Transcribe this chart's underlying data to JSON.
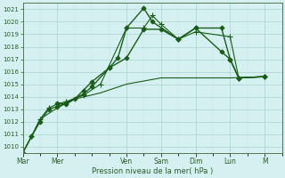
{
  "xlabel": "Pression niveau de la mer( hPa )",
  "background_color": "#d4f0f0",
  "grid_color_major": "#b0d0d0",
  "grid_color_minor": "#c8e4e4",
  "line_color": "#1a5c1a",
  "ylim": [
    1009.5,
    1021.5
  ],
  "yticks": [
    1010,
    1011,
    1012,
    1013,
    1014,
    1015,
    1016,
    1017,
    1018,
    1019,
    1020,
    1021
  ],
  "day_labels": [
    "Mar",
    "Mer",
    "Ven",
    "Sam",
    "Dim",
    "Lun",
    "M"
  ],
  "day_positions": [
    0,
    24,
    72,
    96,
    120,
    144,
    168
  ],
  "xlim": [
    0,
    180
  ],
  "series": [
    {
      "x": [
        0,
        6,
        12,
        18,
        24,
        30,
        42,
        48,
        60,
        66,
        72,
        84,
        90,
        108,
        120,
        138,
        144,
        150,
        168
      ],
      "y": [
        1009.5,
        1010.8,
        1012.0,
        1013.0,
        1013.2,
        1013.5,
        1014.2,
        1014.8,
        1016.3,
        1017.1,
        1019.5,
        1021.1,
        1020.0,
        1018.6,
        1019.5,
        1019.5,
        1017.0,
        1015.5,
        1015.6
      ],
      "marker": "D",
      "markersize": 2.5,
      "linewidth": 1.0
    },
    {
      "x": [
        0,
        6,
        12,
        18,
        24,
        30,
        42,
        54,
        72,
        84,
        90,
        96,
        108,
        120,
        144,
        150,
        168
      ],
      "y": [
        1009.5,
        1010.8,
        1012.2,
        1013.1,
        1013.4,
        1013.6,
        1014.1,
        1015.0,
        1019.5,
        1019.5,
        1020.5,
        1019.8,
        1018.6,
        1019.2,
        1018.8,
        1015.5,
        1015.6
      ],
      "marker": "+",
      "markersize": 4,
      "linewidth": 0.8
    },
    {
      "x": [
        0,
        6,
        12,
        24,
        36,
        54,
        72,
        96,
        108,
        120,
        144,
        168
      ],
      "y": [
        1009.5,
        1010.8,
        1012.2,
        1013.1,
        1013.8,
        1014.3,
        1015.0,
        1015.5,
        1015.5,
        1015.5,
        1015.5,
        1015.6
      ],
      "marker": null,
      "markersize": 0,
      "linewidth": 0.8
    },
    {
      "x": [
        24,
        30,
        36,
        42,
        48,
        60,
        72,
        84,
        96,
        108,
        120,
        138,
        144,
        150,
        168
      ],
      "y": [
        1013.5,
        1013.4,
        1013.8,
        1014.5,
        1015.2,
        1016.3,
        1017.1,
        1019.4,
        1019.4,
        1018.6,
        1019.5,
        1017.6,
        1017.0,
        1015.5,
        1015.6
      ],
      "marker": "D",
      "markersize": 2.5,
      "linewidth": 1.0
    }
  ]
}
